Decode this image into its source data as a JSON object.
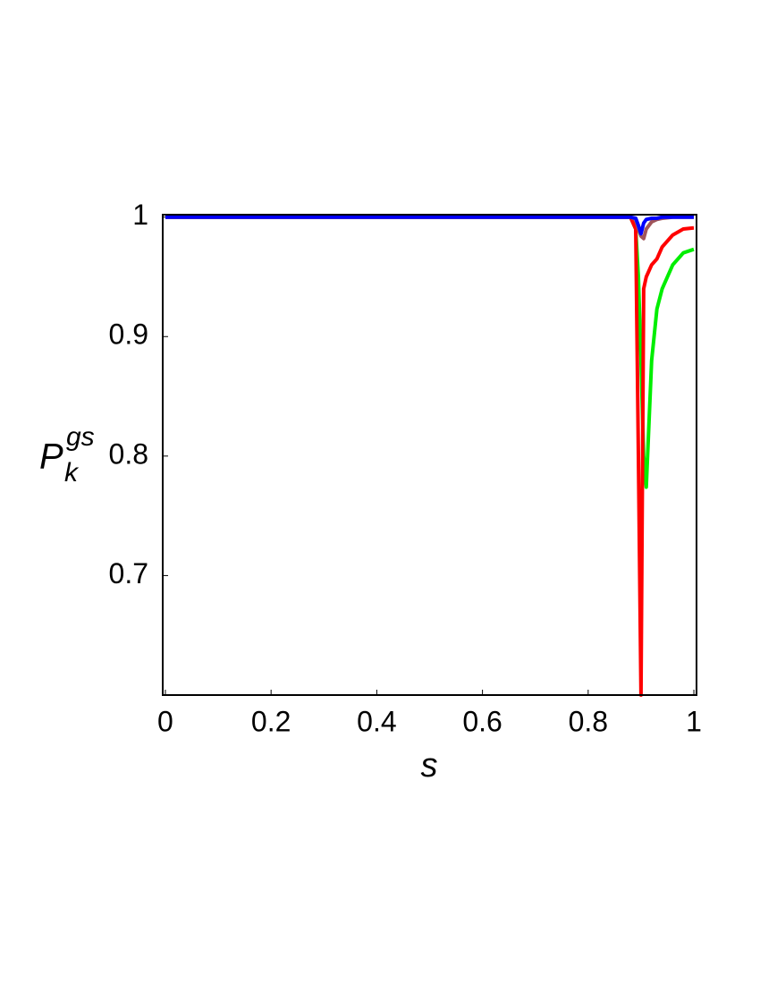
{
  "chart_data": {
    "type": "line",
    "xlabel": "s",
    "ylabel": {
      "base": "P",
      "sub": "k",
      "sup": "gs"
    },
    "x": [
      0,
      0.88,
      0.89,
      0.895,
      0.9,
      0.905,
      0.91,
      0.92,
      0.93,
      0.94,
      0.96,
      0.98,
      1.0
    ],
    "series": [
      {
        "color": "#00ee00",
        "values": [
          1,
          1,
          0.99,
          0.95,
          0.88,
          0.8,
          0.774,
          0.88,
          0.923,
          0.94,
          0.96,
          0.97,
          0.973
        ]
      },
      {
        "color": "#ff0000",
        "values": [
          1,
          1,
          0.99,
          0.8,
          0.6,
          0.94,
          0.95,
          0.96,
          0.965,
          0.975,
          0.985,
          0.99,
          0.991
        ]
      },
      {
        "color": "#a0555a",
        "values": [
          1,
          1,
          0.998,
          0.99,
          0.984,
          0.982,
          0.99,
          0.996,
          0.998,
          0.999,
          1,
          1,
          1
        ]
      },
      {
        "color": "#0000ff",
        "values": [
          1,
          1,
          0.999,
          0.993,
          0.986,
          0.995,
          0.998,
          0.999,
          0.999,
          1,
          1,
          1,
          1
        ]
      }
    ],
    "xlim": [
      -0.005,
      1.005
    ],
    "xticks": [
      0,
      0.2,
      0.4,
      0.6,
      0.8,
      1
    ],
    "ylim": [
      0.6,
      1.002
    ],
    "yticks": [
      0.7,
      0.8,
      0.9,
      1
    ]
  }
}
